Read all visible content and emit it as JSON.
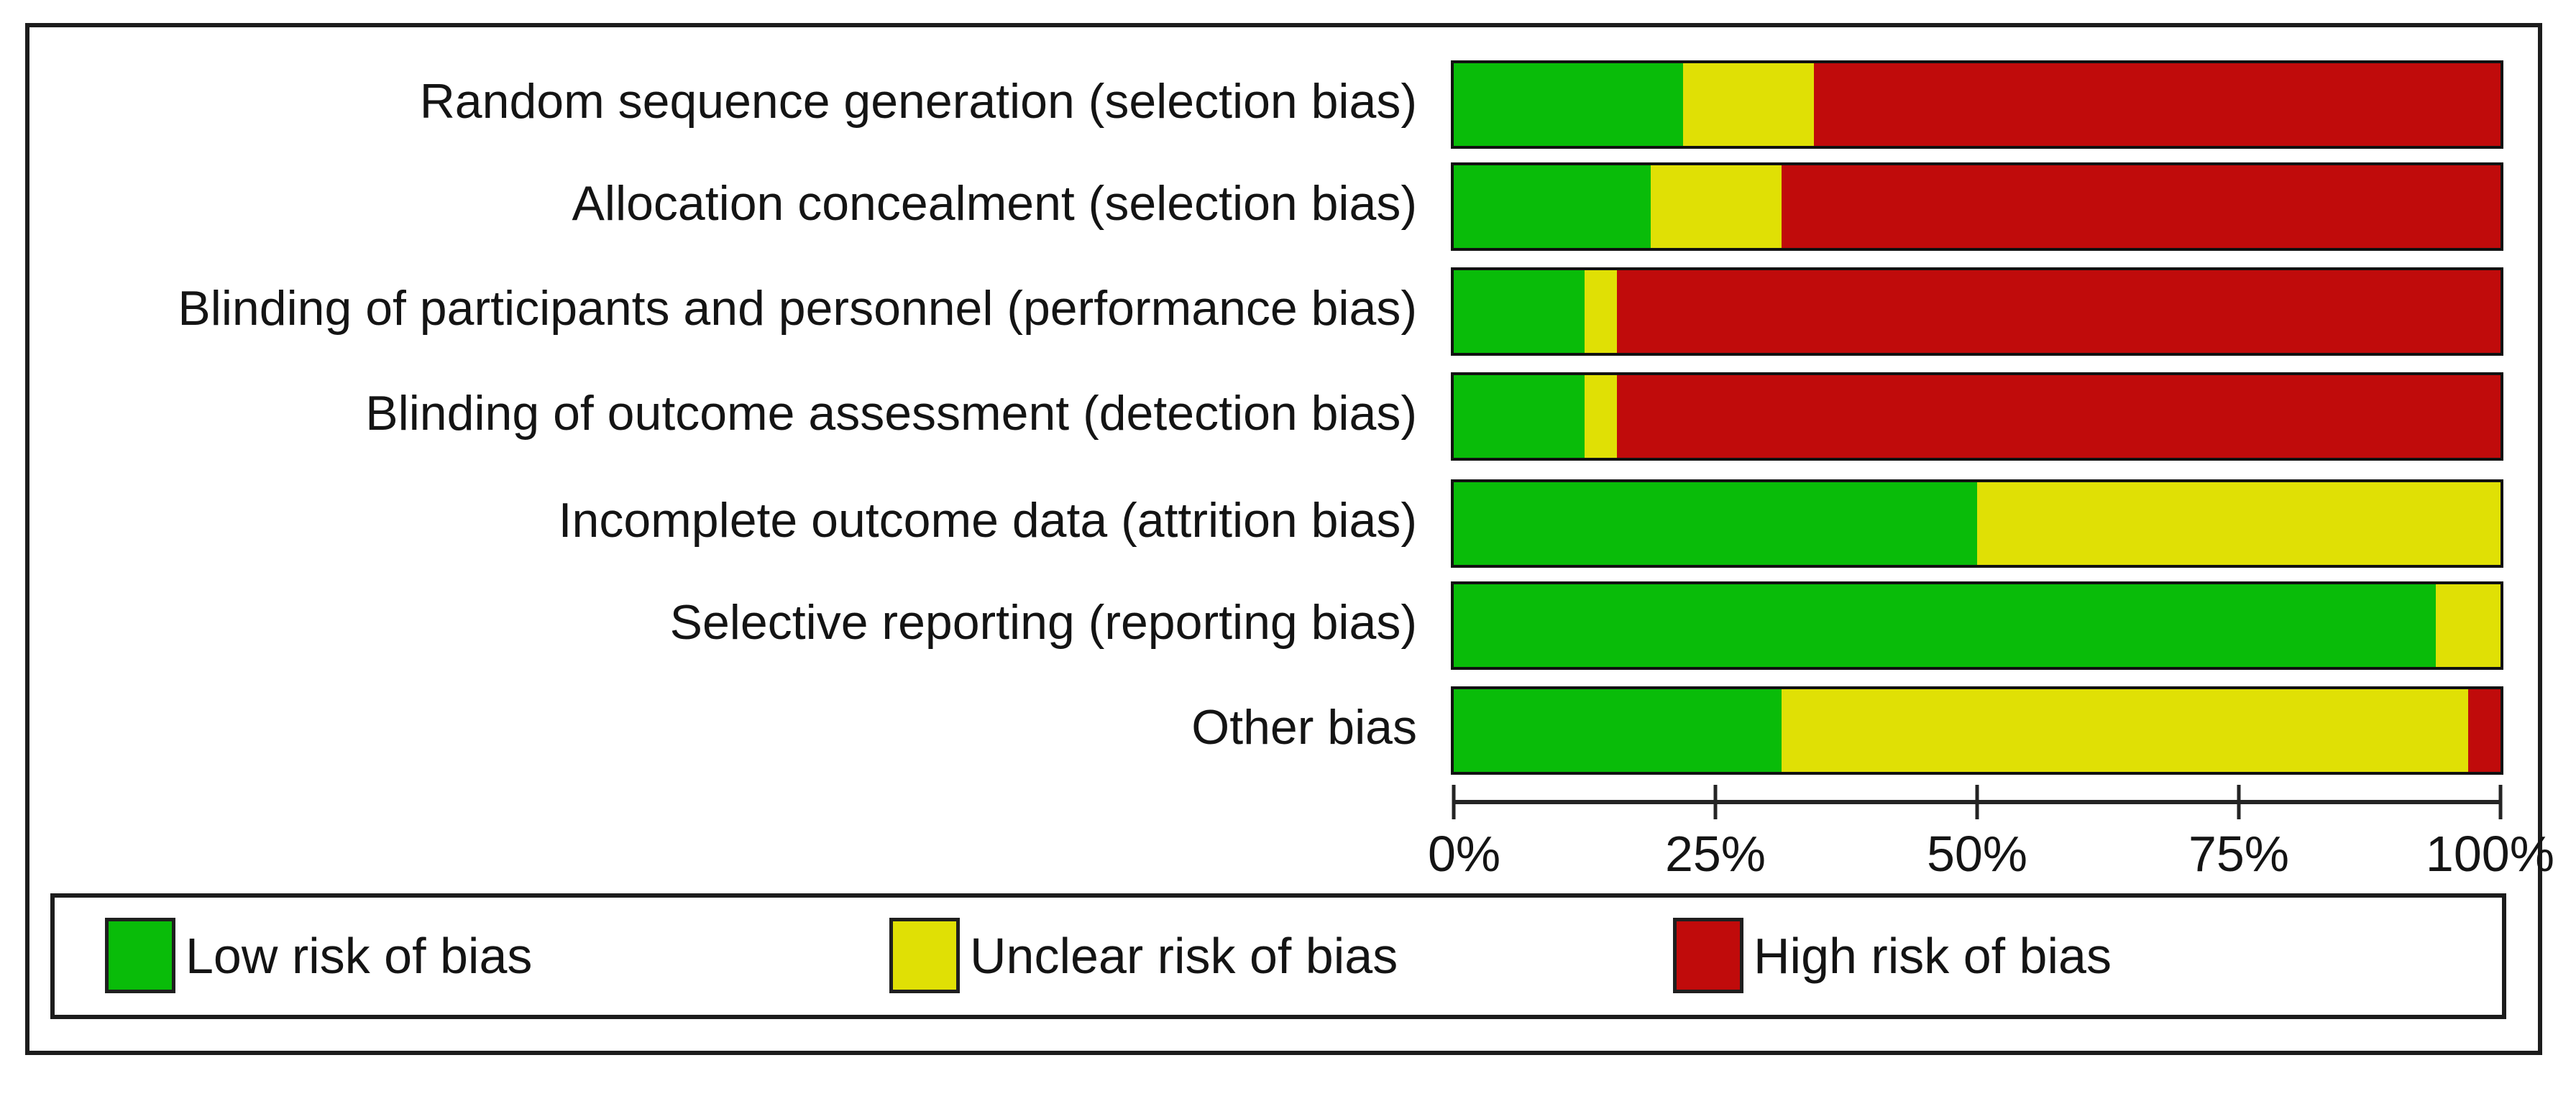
{
  "chart_data": {
    "type": "bar",
    "variant": "horizontal-stacked-percentage",
    "title": "",
    "xlabel": "",
    "ylabel": "",
    "x_axis": {
      "range": [
        0,
        100
      ],
      "unit": "%",
      "tick_labels": [
        "0%",
        "25%",
        "50%",
        "75%",
        "100%"
      ],
      "tick_positions": [
        0,
        25,
        50,
        75,
        100
      ]
    },
    "grid": false,
    "legend_position": "bottom",
    "categories": [
      "Random sequence generation (selection bias)",
      "Allocation concealment (selection bias)",
      "Blinding of participants and personnel (performance bias)",
      "Blinding of outcome assessment (detection bias)",
      "Incomplete outcome data (attrition bias)",
      "Selective reporting (reporting bias)",
      "Other bias"
    ],
    "series": [
      {
        "name": "Low risk of bias",
        "color": "#09bc09",
        "values": [
          21.9,
          18.8,
          12.5,
          12.5,
          50.0,
          93.8,
          31.3
        ]
      },
      {
        "name": "Unclear risk of bias",
        "color": "#e0e005",
        "values": [
          12.5,
          12.5,
          3.1,
          3.1,
          50.0,
          6.2,
          65.6
        ]
      },
      {
        "name": "High risk of bias",
        "color": "#c00b0b",
        "values": [
          65.6,
          68.7,
          84.4,
          84.4,
          0.0,
          0.0,
          3.1
        ]
      }
    ]
  },
  "legend": {
    "items": [
      {
        "label": "Low risk of bias",
        "color": "#09bc09"
      },
      {
        "label": "Unclear risk of bias",
        "color": "#e0e005"
      },
      {
        "label": "High risk of bias",
        "color": "#c00b0b"
      }
    ]
  }
}
